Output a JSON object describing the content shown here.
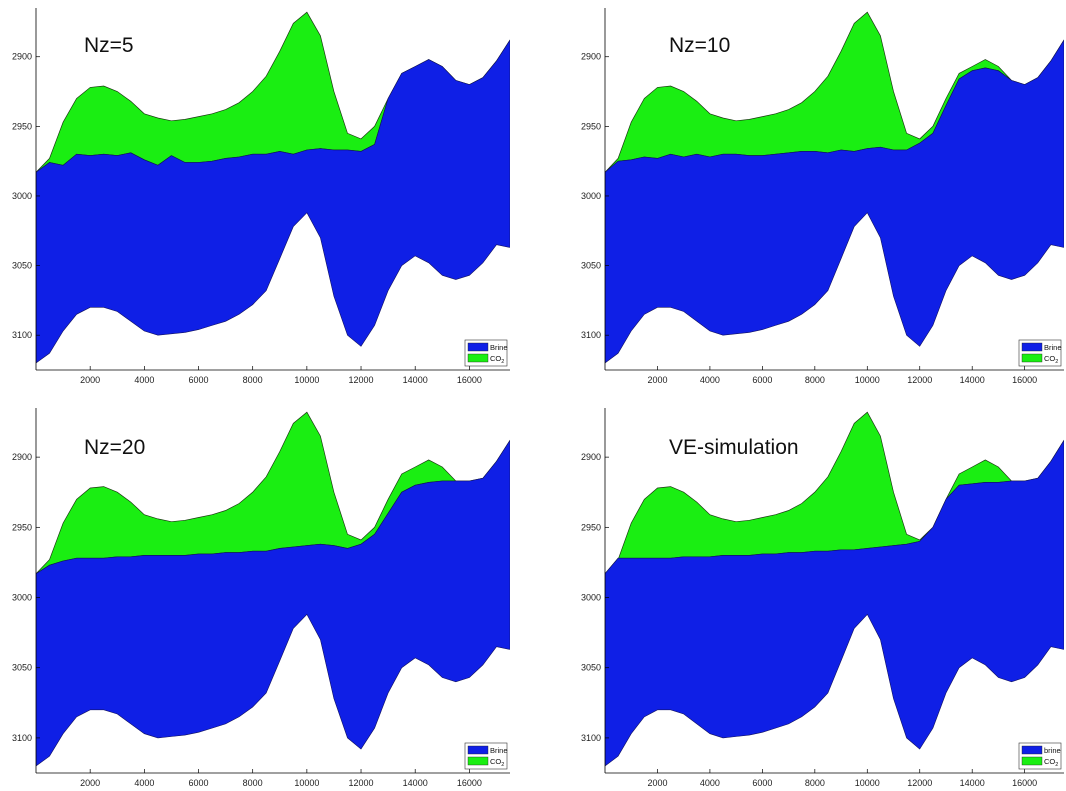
{
  "colors": {
    "brine": "#0f1fe6",
    "co2": "#1aee12",
    "axis": "#000000"
  },
  "chart_data": [
    {
      "type": "area",
      "title": "Nz=5",
      "xlim": [
        0,
        17500
      ],
      "ylim": [
        3125,
        2865
      ],
      "y_reversed": true,
      "xticks": [
        "2000",
        "4000",
        "6000",
        "8000",
        "10000",
        "12000",
        "14000",
        "16000"
      ],
      "yticks": [
        "2900",
        "2950",
        "3000",
        "3050",
        "3100"
      ],
      "legend": {
        "position": "bottom-right",
        "entries": [
          "Brine",
          "CO2"
        ]
      },
      "x": [
        0,
        500,
        1000,
        1500,
        2000,
        2500,
        3000,
        3500,
        4000,
        4500,
        5000,
        5500,
        6000,
        6500,
        7000,
        7500,
        8000,
        8500,
        9000,
        9500,
        10000,
        10500,
        11000,
        11500,
        12000,
        12500,
        13000,
        13500,
        14000,
        14500,
        15000,
        15500,
        16000,
        16500,
        17000,
        17500
      ],
      "top": [
        2983,
        2973,
        2947,
        2930,
        2922,
        2921,
        2925,
        2932,
        2941,
        2944,
        2946,
        2945,
        2943,
        2941,
        2938,
        2933,
        2925,
        2914,
        2896,
        2876,
        2868,
        2885,
        2925,
        2955,
        2959,
        2950,
        2930,
        2912,
        2907,
        2902,
        2907,
        2917,
        2920,
        2915,
        2903,
        2888
      ],
      "interface": [
        2983,
        2976,
        2978,
        2970,
        2971,
        2970,
        2971,
        2969,
        2974,
        2978,
        2971,
        2976,
        2976,
        2975,
        2973,
        2972,
        2970,
        2970,
        2968,
        2970,
        2967,
        2966,
        2967,
        2967,
        2968,
        2963,
        2930,
        2912,
        2907,
        2902,
        2907,
        2917,
        2920,
        2915,
        2903,
        2888
      ],
      "bottom": [
        3120,
        3113,
        3097,
        3085,
        3080,
        3080,
        3083,
        3090,
        3097,
        3100,
        3099,
        3098,
        3096,
        3093,
        3090,
        3085,
        3078,
        3068,
        3045,
        3022,
        3012,
        3030,
        3072,
        3100,
        3108,
        3093,
        3068,
        3050,
        3043,
        3048,
        3057,
        3060,
        3057,
        3048,
        3035,
        3037
      ]
    },
    {
      "type": "area",
      "title": "Nz=10",
      "xlim": [
        0,
        17500
      ],
      "ylim": [
        3125,
        2865
      ],
      "y_reversed": true,
      "xticks": [
        "2000",
        "4000",
        "6000",
        "8000",
        "10000",
        "12000",
        "14000",
        "16000"
      ],
      "yticks": [
        "2900",
        "2950",
        "3000",
        "3050",
        "3100"
      ],
      "legend": {
        "position": "bottom-right",
        "entries": [
          "Brine",
          "CO2"
        ]
      },
      "x": [
        0,
        500,
        1000,
        1500,
        2000,
        2500,
        3000,
        3500,
        4000,
        4500,
        5000,
        5500,
        6000,
        6500,
        7000,
        7500,
        8000,
        8500,
        9000,
        9500,
        10000,
        10500,
        11000,
        11500,
        12000,
        12500,
        13000,
        13500,
        14000,
        14500,
        15000,
        15500,
        16000,
        16500,
        17000,
        17500
      ],
      "top": [
        2983,
        2973,
        2947,
        2930,
        2922,
        2921,
        2925,
        2932,
        2941,
        2944,
        2946,
        2945,
        2943,
        2941,
        2938,
        2933,
        2925,
        2914,
        2896,
        2876,
        2868,
        2885,
        2925,
        2955,
        2959,
        2950,
        2930,
        2912,
        2907,
        2902,
        2907,
        2917,
        2920,
        2915,
        2903,
        2888
      ],
      "interface": [
        2983,
        2975,
        2974,
        2972,
        2973,
        2970,
        2972,
        2970,
        2972,
        2970,
        2970,
        2971,
        2971,
        2970,
        2969,
        2968,
        2968,
        2969,
        2967,
        2968,
        2966,
        2965,
        2967,
        2967,
        2962,
        2955,
        2935,
        2916,
        2910,
        2908,
        2910,
        2917,
        2920,
        2915,
        2903,
        2888
      ],
      "bottom": [
        3120,
        3113,
        3097,
        3085,
        3080,
        3080,
        3083,
        3090,
        3097,
        3100,
        3099,
        3098,
        3096,
        3093,
        3090,
        3085,
        3078,
        3068,
        3045,
        3022,
        3012,
        3030,
        3072,
        3100,
        3108,
        3093,
        3068,
        3050,
        3043,
        3048,
        3057,
        3060,
        3057,
        3048,
        3035,
        3037
      ]
    },
    {
      "type": "area",
      "title": "Nz=20",
      "xlim": [
        0,
        17500
      ],
      "ylim": [
        3125,
        2865
      ],
      "y_reversed": true,
      "xticks": [
        "2000",
        "4000",
        "6000",
        "8000",
        "10000",
        "12000",
        "14000",
        "16000"
      ],
      "yticks": [
        "2900",
        "2950",
        "3000",
        "3050",
        "3100"
      ],
      "legend": {
        "position": "bottom-right",
        "entries": [
          "Brine",
          "CO2"
        ]
      },
      "x": [
        0,
        500,
        1000,
        1500,
        2000,
        2500,
        3000,
        3500,
        4000,
        4500,
        5000,
        5500,
        6000,
        6500,
        7000,
        7500,
        8000,
        8500,
        9000,
        9500,
        10000,
        10500,
        11000,
        11500,
        12000,
        12500,
        13000,
        13500,
        14000,
        14500,
        15000,
        15500,
        16000,
        16500,
        17000,
        17500
      ],
      "top": [
        2983,
        2973,
        2947,
        2930,
        2922,
        2921,
        2925,
        2932,
        2941,
        2944,
        2946,
        2945,
        2943,
        2941,
        2938,
        2933,
        2925,
        2914,
        2896,
        2876,
        2868,
        2885,
        2925,
        2955,
        2959,
        2950,
        2930,
        2912,
        2907,
        2902,
        2907,
        2917,
        2920,
        2915,
        2903,
        2888
      ],
      "interface": [
        2983,
        2977,
        2974,
        2972,
        2972,
        2972,
        2971,
        2971,
        2970,
        2970,
        2970,
        2970,
        2969,
        2969,
        2968,
        2968,
        2967,
        2967,
        2965,
        2964,
        2963,
        2962,
        2963,
        2965,
        2962,
        2955,
        2940,
        2925,
        2920,
        2918,
        2917,
        2917,
        2917,
        2915,
        2903,
        2888
      ],
      "bottom": [
        3120,
        3113,
        3097,
        3085,
        3080,
        3080,
        3083,
        3090,
        3097,
        3100,
        3099,
        3098,
        3096,
        3093,
        3090,
        3085,
        3078,
        3068,
        3045,
        3022,
        3012,
        3030,
        3072,
        3100,
        3108,
        3093,
        3068,
        3050,
        3043,
        3048,
        3057,
        3060,
        3057,
        3048,
        3035,
        3037
      ]
    },
    {
      "type": "area",
      "title": "VE-simulation",
      "xlim": [
        0,
        17500
      ],
      "ylim": [
        3125,
        2865
      ],
      "y_reversed": true,
      "xticks": [
        "2000",
        "4000",
        "6000",
        "8000",
        "10000",
        "12000",
        "14000",
        "16000"
      ],
      "yticks": [
        "2900",
        "2950",
        "3000",
        "3050",
        "3100"
      ],
      "legend": {
        "position": "bottom-right",
        "entries": [
          "brine",
          "CO2"
        ]
      },
      "x": [
        0,
        500,
        1000,
        1500,
        2000,
        2500,
        3000,
        3500,
        4000,
        4500,
        5000,
        5500,
        6000,
        6500,
        7000,
        7500,
        8000,
        8500,
        9000,
        9500,
        10000,
        10500,
        11000,
        11500,
        12000,
        12500,
        13000,
        13500,
        14000,
        14500,
        15000,
        15500,
        16000,
        16500,
        17000,
        17500
      ],
      "top": [
        2983,
        2973,
        2947,
        2930,
        2922,
        2921,
        2925,
        2932,
        2941,
        2944,
        2946,
        2945,
        2943,
        2941,
        2938,
        2933,
        2925,
        2914,
        2896,
        2876,
        2868,
        2885,
        2925,
        2955,
        2959,
        2950,
        2930,
        2912,
        2907,
        2902,
        2907,
        2917,
        2920,
        2915,
        2903,
        2888
      ],
      "interface": [
        2983,
        2972,
        2972,
        2972,
        2972,
        2972,
        2971,
        2971,
        2971,
        2970,
        2970,
        2970,
        2969,
        2969,
        2968,
        2968,
        2967,
        2967,
        2966,
        2966,
        2965,
        2964,
        2963,
        2962,
        2960,
        2950,
        2930,
        2920,
        2919,
        2918,
        2918,
        2917,
        2917,
        2915,
        2903,
        2888
      ],
      "bottom": [
        3120,
        3113,
        3097,
        3085,
        3080,
        3080,
        3083,
        3090,
        3097,
        3100,
        3099,
        3098,
        3096,
        3093,
        3090,
        3085,
        3078,
        3068,
        3045,
        3022,
        3012,
        3030,
        3072,
        3100,
        3108,
        3093,
        3068,
        3050,
        3043,
        3048,
        3057,
        3060,
        3057,
        3048,
        3035,
        3037
      ]
    }
  ]
}
